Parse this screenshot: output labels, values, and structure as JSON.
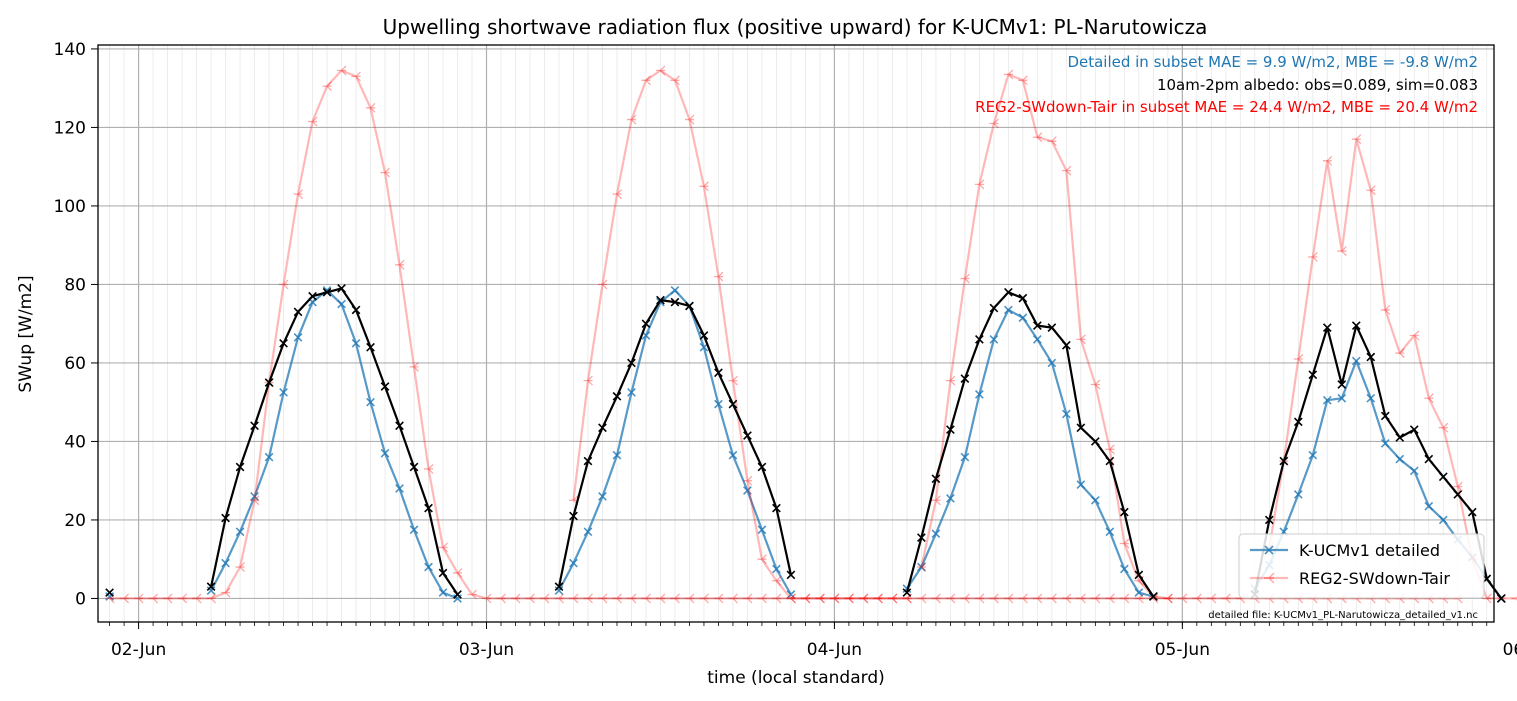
{
  "chart_data": {
    "type": "line",
    "title": "Upwelling shortwave radiation flux (positive upward) for K-UCMv1: PL-Narutowicza",
    "xlabel": "time (local standard)",
    "ylabel": "SWup [W/m2]",
    "x_unit": "hours since 01-Jun 00:00 (local standard)",
    "xlim": [
      21.2,
      117.5
    ],
    "ylim": [
      -6,
      141
    ],
    "x_ticks": [
      {
        "x": 24,
        "label": "02-Jun"
      },
      {
        "x": 48,
        "label": "03-Jun"
      },
      {
        "x": 72,
        "label": "04-Jun"
      },
      {
        "x": 96,
        "label": "05-Jun"
      },
      {
        "x": 120,
        "label": "06-Jun"
      }
    ],
    "y_ticks": [
      0,
      20,
      40,
      60,
      80,
      100,
      120,
      140
    ],
    "grid": true,
    "legend_position": "lower-right",
    "annotations": {
      "detailed_stats": "Detailed in subset MAE = 9.9 W/m2, MBE = -9.8 W/m2",
      "albedo": "10am-2pm albedo: obs=0.089, sim=0.083",
      "reg2_stats": "REG2-SWdown-Tair in subset MAE = 24.4 W/m2, MBE = 20.4 W/m2",
      "file_note": "detailed file: K-UCMv1_PL-Narutowicza_detailed_v1.nc"
    },
    "series": [
      {
        "name": "K-UCMv1 detailed",
        "color": "#1f77b4",
        "marker": "x",
        "segments": [
          {
            "x0": 22,
            "values": [
              0.5
            ]
          },
          {
            "x0": 29,
            "values": [
              2,
              9,
              17,
              26,
              36,
              52.5,
              66.5,
              75.5,
              78.5,
              75,
              65,
              50,
              37,
              28,
              17.5,
              8,
              1.5,
              0
            ]
          },
          {
            "x0": 53,
            "values": [
              2,
              9,
              17,
              26,
              36.5,
              52.5,
              67,
              75.5,
              78.5,
              74.5,
              64,
              49.5,
              36.5,
              27.5,
              17.5,
              7.5,
              1
            ]
          },
          {
            "x0": 77,
            "values": [
              2.5,
              8,
              16.5,
              25.5,
              36,
              52,
              66,
              73.5,
              71.5,
              66,
              60,
              47,
              29,
              25,
              17,
              7.5,
              1.5,
              0.5
            ]
          },
          {
            "x0": 101,
            "values": [
              2.5,
              8.5,
              17,
              26.5,
              36.5,
              50.5,
              51,
              60.5,
              51,
              39.5,
              35.5,
              32.5,
              23.5,
              20,
              15,
              10.5,
              5,
              0
            ]
          }
        ]
      },
      {
        "name": "REG2-SWdown-Tair",
        "color": "#ff0000",
        "marker": "tri_left",
        "segments": [
          {
            "x0": 22,
            "values": [
              0,
              0,
              0,
              0,
              0,
              0,
              0,
              0,
              1.5,
              8,
              25,
              55,
              80,
              103,
              121.5,
              130.5,
              134.5,
              133,
              125,
              108.5,
              85,
              59,
              33,
              13,
              6.5,
              1,
              0,
              0,
              0,
              0,
              0,
              0,
              0,
              0,
              0,
              0,
              0,
              0,
              0,
              0,
              0,
              0,
              0,
              0,
              0,
              0,
              0,
              0,
              0,
              0,
              0,
              0,
              0,
              0,
              0,
              0,
              0,
              0,
              0,
              0,
              0,
              0,
              0,
              0,
              0,
              0,
              0,
              0,
              0,
              0,
              0,
              0,
              0,
              0,
              0,
              0,
              0,
              0,
              0,
              0,
              0,
              0,
              0,
              0,
              0,
              0,
              0,
              0,
              0,
              0,
              0,
              0,
              0,
              0
            ]
          },
          {
            "x0": 54,
            "values": [
              25,
              55.5,
              80,
              103,
              122,
              132,
              134.5,
              132,
              122,
              105,
              82,
              55.5,
              30,
              10,
              4.5,
              0,
              0,
              0,
              0,
              0,
              0,
              0,
              0,
              0
            ]
          },
          {
            "x0": 78,
            "values": [
              8,
              25,
              55.5,
              81.5,
              105.5,
              121,
              133.5,
              132,
              117.5,
              116.5,
              109,
              66,
              54.5,
              38,
              14,
              4.5,
              0.5,
              0
            ]
          },
          {
            "x0": 102,
            "values": [
              13,
              35,
              61,
              87,
              111.5,
              88.5,
              117,
              104,
              73.5,
              62.5,
              67,
              51,
              43.5,
              28.5,
              10,
              0,
              0,
              0
            ]
          }
        ]
      },
      {
        "name": "observed",
        "color": "#000000",
        "marker": "x",
        "segments": [
          {
            "x0": 22,
            "values": [
              1.5
            ]
          },
          {
            "x0": 29,
            "values": [
              3,
              20.5,
              33.5,
              44,
              55,
              65,
              73,
              77,
              78,
              79,
              73.5,
              64,
              54,
              44,
              33.5,
              23,
              6.5,
              1
            ]
          },
          {
            "x0": 53,
            "values": [
              3,
              21,
              35,
              43.5,
              51.5,
              60,
              70,
              76,
              75.5,
              74.5,
              67,
              57.5,
              49.5,
              41.5,
              33.5,
              23,
              6
            ]
          },
          {
            "x0": 77,
            "values": [
              1.5,
              15.5,
              30.5,
              43,
              56,
              66,
              74,
              78,
              76.5,
              69.5,
              69,
              64.5,
              43.5,
              40,
              35,
              22,
              6,
              0.5
            ]
          },
          {
            "x0": 101,
            "values": [
              1,
              20,
              35,
              45,
              57,
              69,
              54.5,
              69.5,
              61.5,
              46.5,
              41,
              43,
              35.5,
              31,
              26.5,
              22,
              5,
              0
            ]
          }
        ]
      }
    ]
  }
}
